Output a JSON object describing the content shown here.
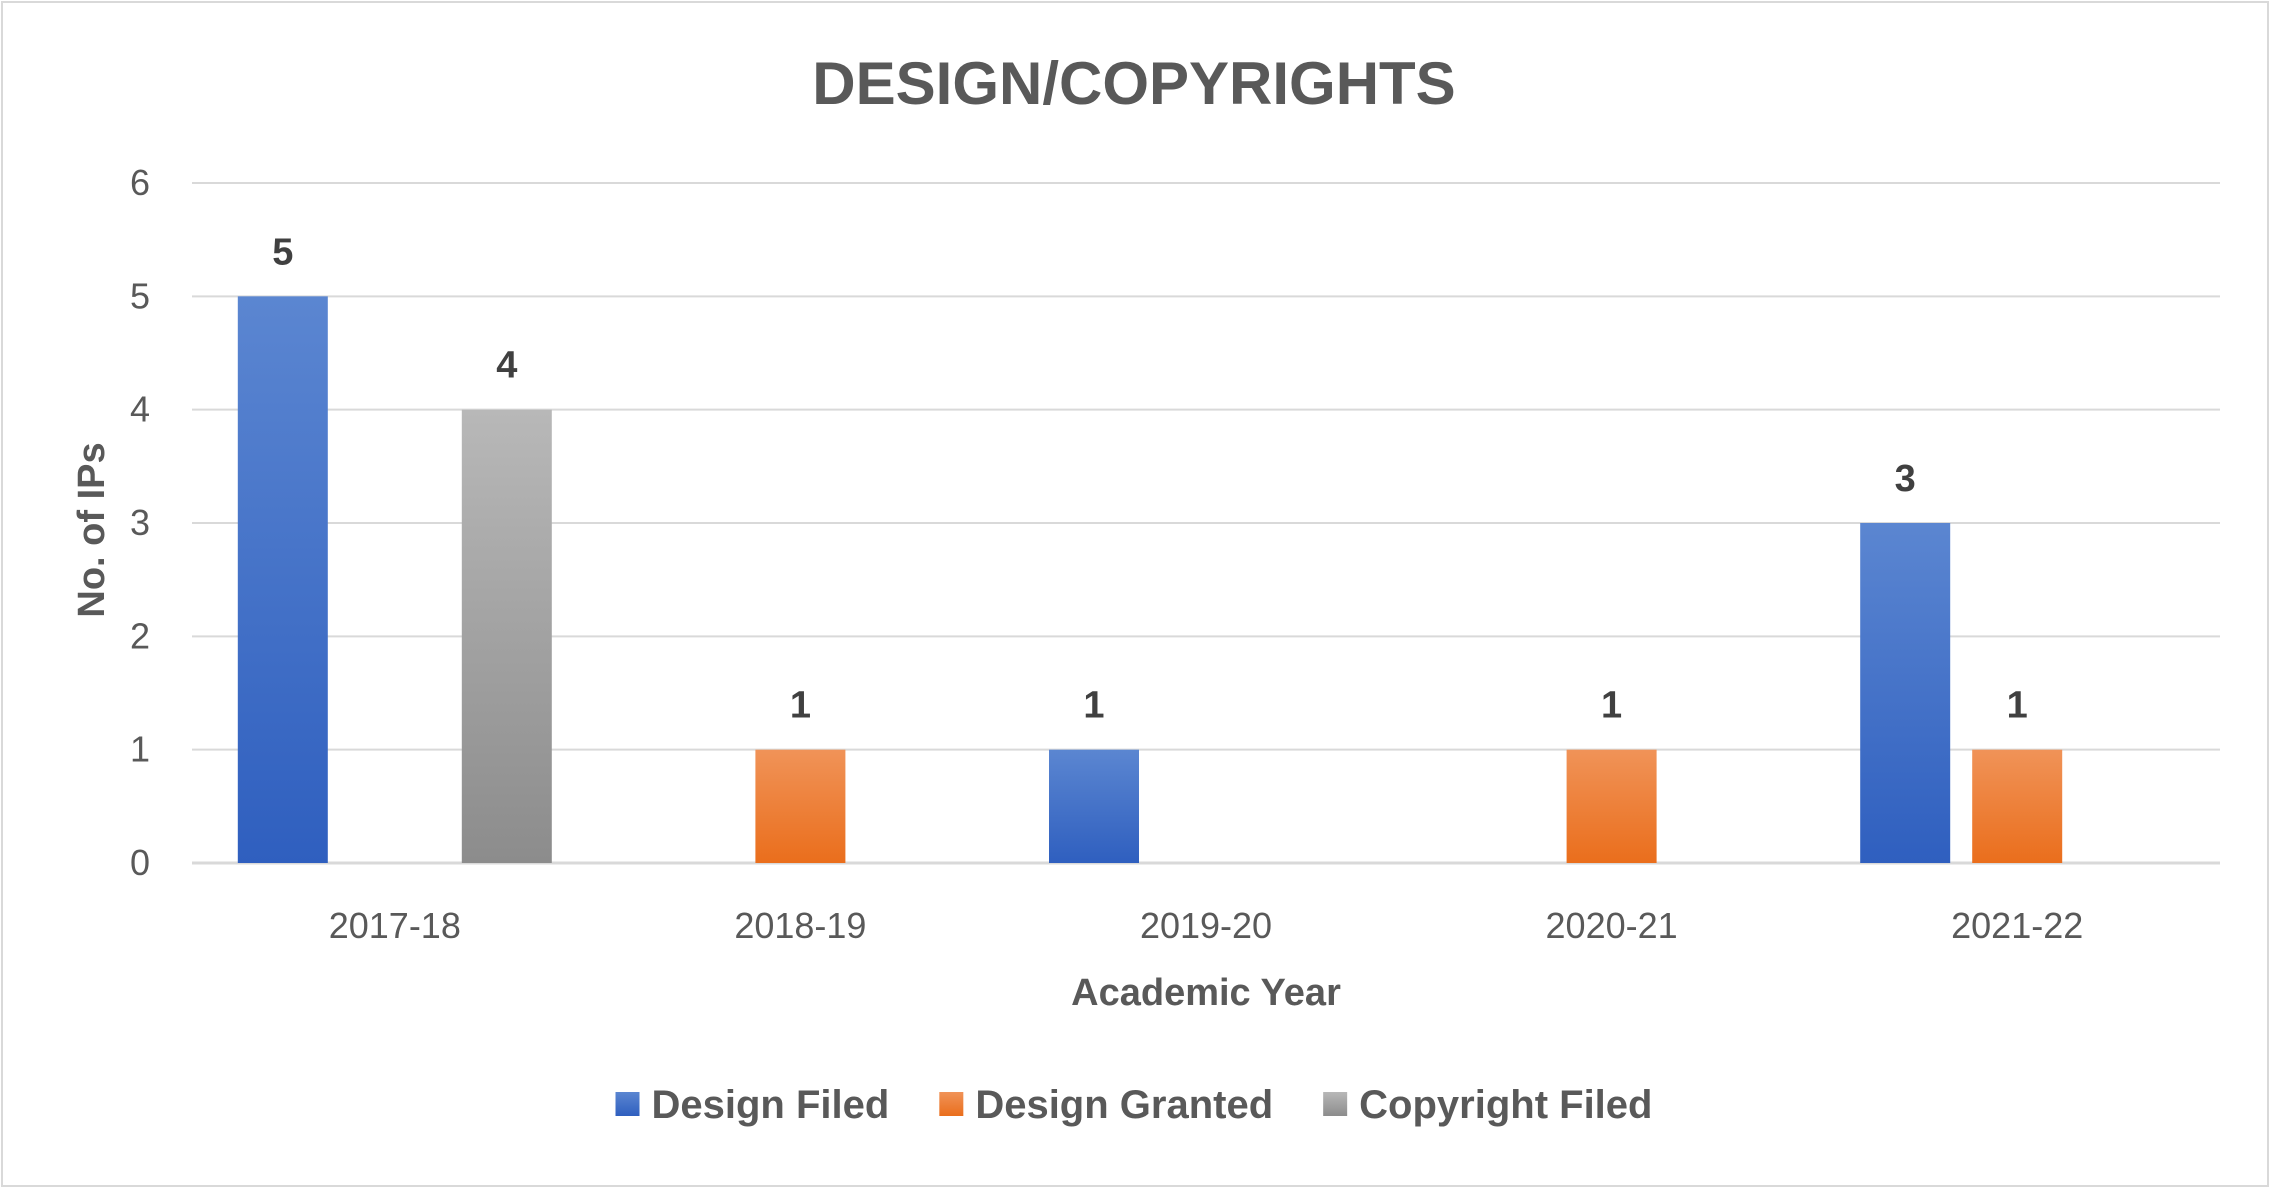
{
  "chart_data": {
    "type": "bar",
    "title": "DESIGN/COPYRIGHTS",
    "xlabel": "Academic Year",
    "ylabel": "No. of IPs",
    "ylim": [
      0,
      6
    ],
    "yticks": [
      "0",
      "1",
      "2",
      "3",
      "4",
      "5",
      "6"
    ],
    "categories": [
      "2017-18",
      "2018-19",
      "2019-20",
      "2020-21",
      "2021-22"
    ],
    "series": [
      {
        "name": "Design Filed",
        "color": "#4472c4",
        "values": [
          5,
          null,
          1,
          null,
          3
        ]
      },
      {
        "name": "Design Granted",
        "color": "#ed7d31",
        "values": [
          null,
          1,
          null,
          1,
          1
        ]
      },
      {
        "name": "Copyright Filed",
        "color": "#a5a5a5",
        "values": [
          4,
          null,
          null,
          null,
          null
        ]
      }
    ],
    "grid": true,
    "legend_position": "bottom",
    "data_labels": true
  }
}
